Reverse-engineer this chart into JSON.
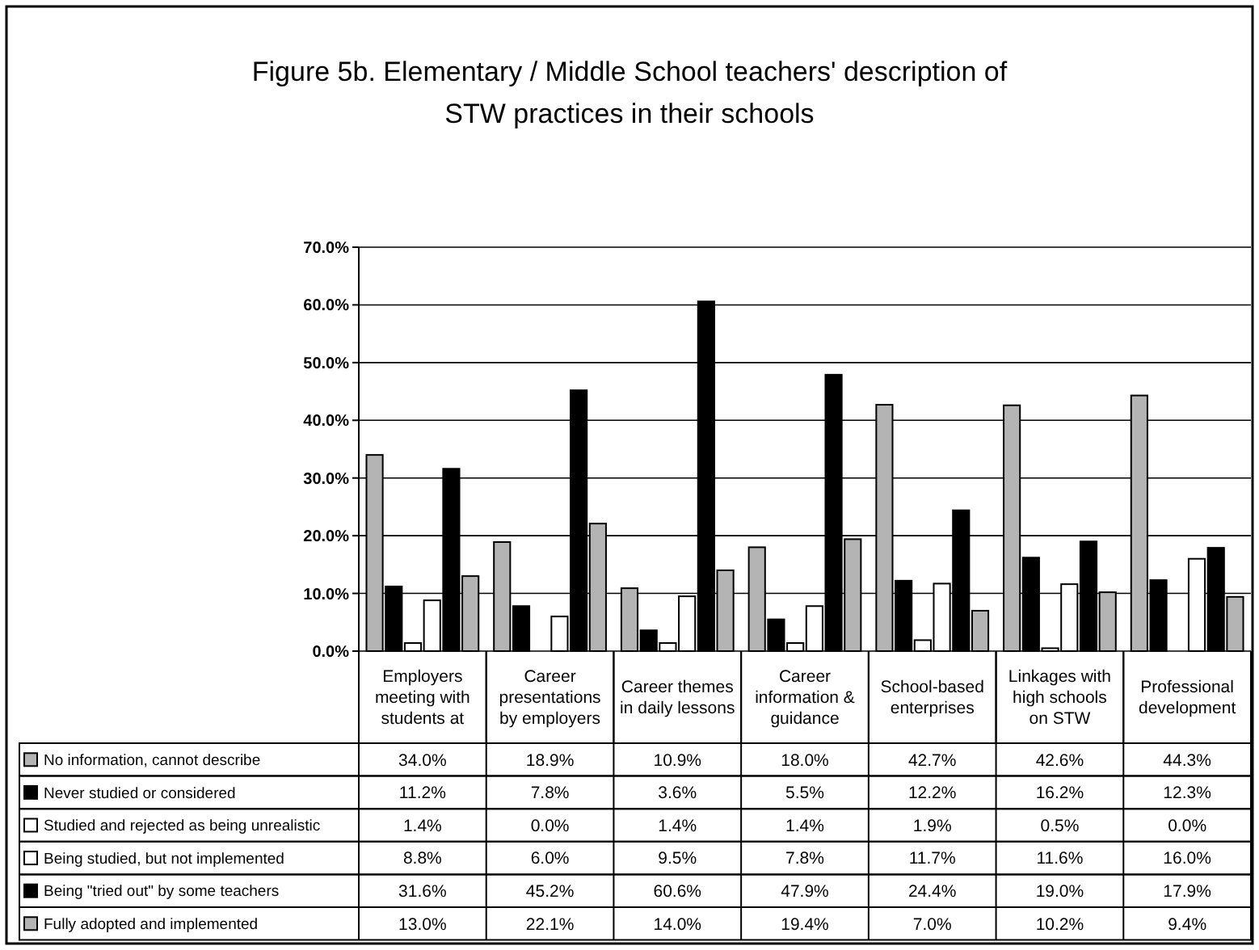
{
  "chart_data": {
    "type": "bar",
    "title": "Figure 5b.  Elementary / Middle School teachers' description of STW practices in their schools",
    "categories": [
      "Employers meeting with students at",
      "Career presentations by employers",
      "Career themes in daily lessons",
      "Career information & guidance",
      "School-based enterprises",
      "Linkages with high schools on STW",
      "Professional development"
    ],
    "series": [
      {
        "name": "No information, cannot describe",
        "color": "#b4b4b4",
        "values": [
          34.0,
          18.9,
          10.9,
          18.0,
          42.7,
          42.6,
          44.3
        ],
        "value_labels": [
          "34.0%",
          "18.9%",
          "10.9%",
          "18.0%",
          "42.7%",
          "42.6%",
          "44.3%"
        ]
      },
      {
        "name": "Never studied or considered",
        "color": "#000000",
        "values": [
          11.2,
          7.8,
          3.6,
          5.5,
          12.2,
          16.2,
          12.3
        ],
        "value_labels": [
          "11.2%",
          "7.8%",
          "3.6%",
          "5.5%",
          "12.2%",
          "16.2%",
          "12.3%"
        ]
      },
      {
        "name": "Studied and rejected as being unrealistic",
        "color": "#ffffff",
        "values": [
          1.4,
          0.0,
          1.4,
          1.4,
          1.9,
          0.5,
          0.0
        ],
        "value_labels": [
          "1.4%",
          "0.0%",
          "1.4%",
          "1.4%",
          "1.9%",
          "0.5%",
          "0.0%"
        ]
      },
      {
        "name": "Being studied, but not implemented",
        "color": "#ffffff",
        "values": [
          8.8,
          6.0,
          9.5,
          7.8,
          11.7,
          11.6,
          16.0
        ],
        "value_labels": [
          "8.8%",
          "6.0%",
          "9.5%",
          "7.8%",
          "11.7%",
          "11.6%",
          "16.0%"
        ]
      },
      {
        "name": "Being \"tried out\" by some teachers",
        "color": "#000000",
        "values": [
          31.6,
          45.2,
          60.6,
          47.9,
          24.4,
          19.0,
          17.9
        ],
        "value_labels": [
          "31.6%",
          "45.2%",
          "60.6%",
          "47.9%",
          "24.4%",
          "19.0%",
          "17.9%"
        ]
      },
      {
        "name": "Fully adopted and implemented",
        "color": "#b4b4b4",
        "values": [
          13.0,
          22.1,
          14.0,
          19.4,
          7.0,
          10.2,
          9.4
        ],
        "value_labels": [
          "13.0%",
          "22.1%",
          "14.0%",
          "19.4%",
          "7.0%",
          "10.2%",
          "9.4%"
        ]
      }
    ],
    "ylim": [
      0,
      70
    ],
    "yticks": [
      {
        "value": 0,
        "label": "0.0%"
      },
      {
        "value": 10,
        "label": "10.0%"
      },
      {
        "value": 20,
        "label": "20.0%"
      },
      {
        "value": 30,
        "label": "30.0%"
      },
      {
        "value": 40,
        "label": "40.0%"
      },
      {
        "value": 50,
        "label": "50.0%"
      },
      {
        "value": 60,
        "label": "60.0%"
      },
      {
        "value": 70,
        "label": "70.0%"
      }
    ],
    "grid": "y",
    "legend": "bottom"
  }
}
